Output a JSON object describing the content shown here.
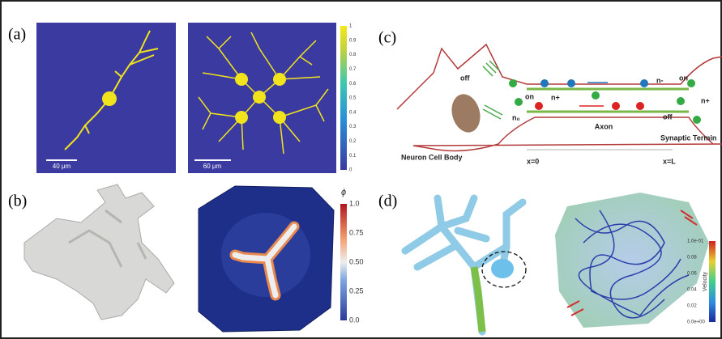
{
  "panels": [
    {
      "label": "(a)",
      "scale_bars": [
        "40 μm",
        "60 μm"
      ],
      "colorbar": {
        "ticks": [
          "1",
          "0.9",
          "0.8",
          "0.7",
          "0.6",
          "0.5",
          "0.4",
          "0.3",
          "0.2",
          "0.1",
          "0"
        ]
      }
    },
    {
      "label": "(b)",
      "colorbar": {
        "symbol": "ϕ",
        "ticks": [
          "1.0",
          "0.75",
          "0.50",
          "0.25",
          "0.0"
        ]
      }
    },
    {
      "label": "(c)",
      "labels": [
        "off",
        "on",
        "n-",
        "n+",
        "n+",
        "on",
        "n₀",
        "off",
        "Axon",
        "Synaptic Termin",
        "Neuron Cell Body",
        "x=0",
        "x=L"
      ]
    },
    {
      "label": "(d)",
      "colorbar": {
        "title": "Velocity",
        "ticks": [
          "1.0e-01",
          "0.08",
          "0.06",
          "0.04",
          "0.02",
          "0.0e+00"
        ]
      }
    }
  ]
}
